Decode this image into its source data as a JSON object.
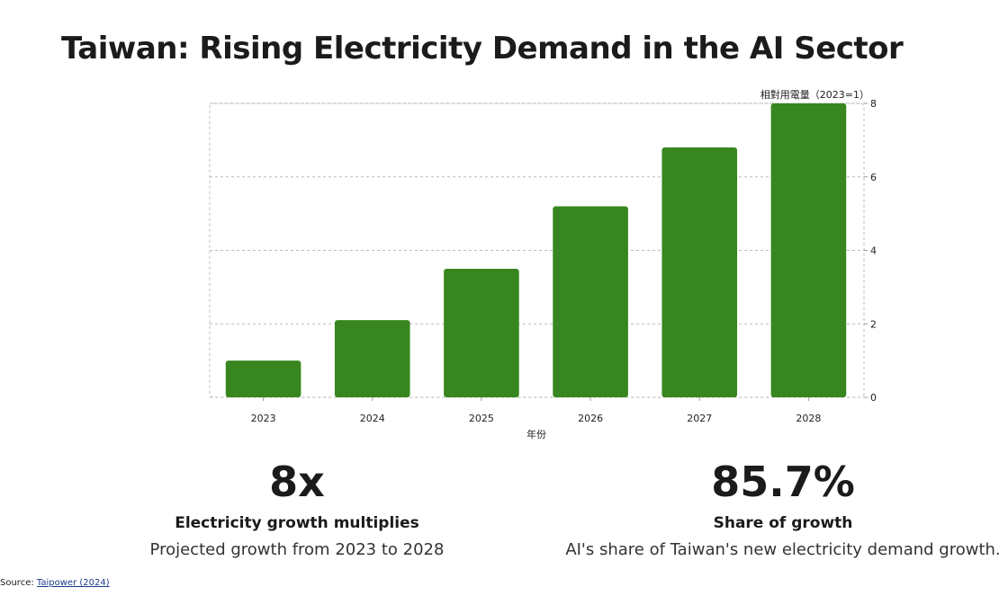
{
  "title": "Taiwan: Rising Electricity Demand in the AI Sector",
  "chart_data": {
    "type": "bar",
    "categories": [
      "2023",
      "2024",
      "2025",
      "2026",
      "2027",
      "2028"
    ],
    "values": [
      1.0,
      2.1,
      3.5,
      5.2,
      6.8,
      8.0
    ],
    "xlabel": "年份",
    "ylabel": "相對用電量（2023=1）",
    "ylim": [
      0,
      8
    ],
    "yticks": [
      0,
      2,
      4,
      6,
      8
    ],
    "y_axis_side": "right",
    "grid": true,
    "bar_color": "#38861f"
  },
  "stats": {
    "left": {
      "value": "8x",
      "label": "Electricity growth multiplies",
      "description": "Projected growth from 2023 to 2028"
    },
    "right": {
      "value": "85.7%",
      "label": "Share of growth",
      "description": "AI's share of Taiwan's new electricity demand growth."
    }
  },
  "source": {
    "prefix": "Source: ",
    "link_text": "Taipower (2024)"
  }
}
